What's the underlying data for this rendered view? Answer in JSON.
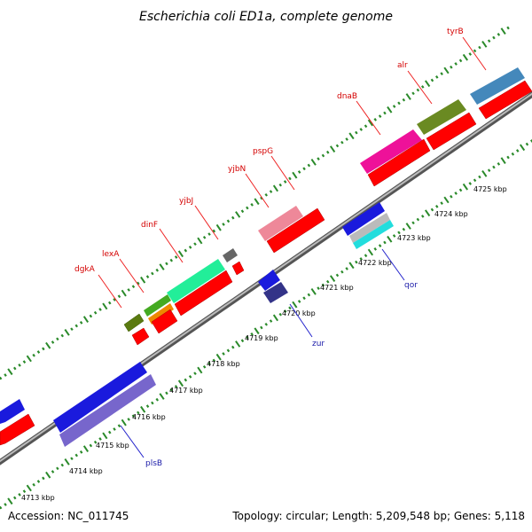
{
  "title": "Escherichia coli ED1a, complete genome",
  "footer": {
    "accession": "Accession: NC_011745",
    "info": "Topology: circular; Length: 5,209,548 bp; Genes: 5,118"
  },
  "colors": {
    "backbone": "#888888",
    "tick": "#2a8a2a",
    "label_forward": "#d40000",
    "label_reverse": "#1a1aa8",
    "leader_forward": "#ee2222",
    "leader_reverse": "#2222cc"
  },
  "kbp_labels": [
    "4713 kbp",
    "4714 kbp",
    "4715 kbp",
    "4716 kbp",
    "4717 kbp",
    "4718 kbp",
    "4719 kbp",
    "4720 kbp",
    "4721 kbp",
    "4722 kbp",
    "4723 kbp",
    "4724 kbp",
    "4725 kbp"
  ],
  "genes_forward_labeled": [
    {
      "name": "dgkA",
      "color": "#5a7a10"
    },
    {
      "name": "lexA",
      "color": "#ee8800"
    },
    {
      "name": "dinF",
      "color": "#22ee99"
    },
    {
      "name": "yjbJ",
      "color": "#666666"
    },
    {
      "name": "yjbN",
      "color": "#ee8899"
    },
    {
      "name": "pspG",
      "color": "#ee8899"
    },
    {
      "name": "dnaB",
      "color": "#ee1199"
    },
    {
      "name": "alr",
      "color": "#6a8a22"
    },
    {
      "name": "tyrB",
      "color": "#4488bb"
    }
  ],
  "genes_reverse_labeled": [
    {
      "name": "plsB",
      "color": "#7766cc"
    },
    {
      "name": "zur",
      "color": "#333388"
    },
    {
      "name": "qor",
      "color": "#99ccee"
    }
  ]
}
